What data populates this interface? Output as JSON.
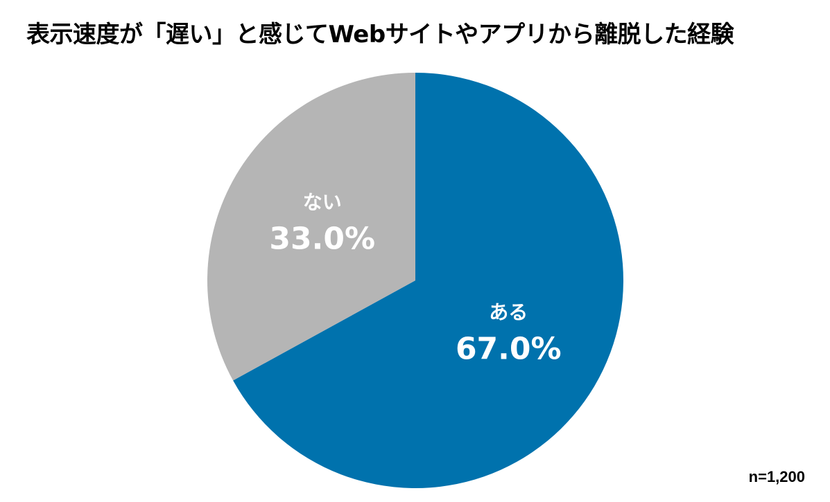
{
  "chart_data": {
    "type": "pie",
    "title": "表示速度が「遅い」と感じてWebサイトやアプリから離脱した経験",
    "slices": [
      {
        "label": "ある",
        "value": 67.0,
        "value_label": "67.0%",
        "color": "#0072ad"
      },
      {
        "label": "ない",
        "value": 33.0,
        "value_label": "33.0%",
        "color": "#b5b5b5"
      }
    ],
    "start_angle": "12 o'clock",
    "direction": "clockwise",
    "legend": "none",
    "note": "n=1,200"
  }
}
